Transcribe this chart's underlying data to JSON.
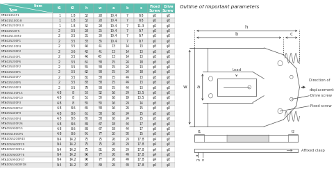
{
  "title_unit": "(unit : mm)",
  "header_bg": "#5dbfb0",
  "header_text": "#ffffff",
  "row_bg_odd": "#ffffff",
  "row_bg_even": "#e8e8e8",
  "col_labels": [
    "t1",
    "t2",
    "h",
    "w",
    "a",
    "b",
    "c",
    "Fixed\nScrew",
    "Drive\nScrew"
  ],
  "rows": [
    [
      "MTA0135CF1",
      1,
      1.8,
      32,
      28,
      10.4,
      7,
      "9.8",
      "φ2",
      "φ2"
    ],
    [
      "MTA0151000.8",
      1,
      1.8,
      32,
      28,
      10.4,
      7,
      "9.8",
      "φ2",
      "φ2"
    ],
    [
      "MTA015200F0.3",
      1,
      1.8,
      32,
      28,
      10.4,
      7,
      "11.3",
      "φ2",
      "φ2"
    ],
    [
      "MTA0255OF5",
      2,
      3.5,
      28,
      25,
      10.4,
      7,
      "9.7",
      "φ2",
      "φ2"
    ],
    [
      "MTA0251O0F2",
      2,
      3.5,
      31,
      30,
      10.4,
      7,
      "9.7",
      "φ2",
      "φ2"
    ],
    [
      "MTA025200F1",
      2,
      3.5,
      33,
      35,
      10.4,
      7,
      "9.7",
      "φ2",
      "φ2"
    ],
    [
      "MTA025100F4",
      2,
      3.5,
      46,
      41,
      13,
      14,
      "13",
      "φ3",
      "φ2"
    ],
    [
      "MTA025200F2",
      2,
      3.6,
      42,
      41,
      13,
      14,
      "13",
      "φ3",
      "φ2"
    ],
    [
      "MTA025400F1",
      2,
      3.5,
      46,
      48,
      13,
      14,
      "13",
      "φ3",
      "φ2"
    ],
    [
      "MTA025200F6",
      2,
      3.5,
      61,
      58,
      15,
      24,
      "18",
      "φ3",
      "φ2"
    ],
    [
      "MTA025400F2",
      2,
      3.5,
      55,
      58,
      15,
      24,
      "13",
      "φ3",
      "φ2"
    ],
    [
      "MTA025600F1",
      2,
      3.5,
      62,
      58,
      15,
      24,
      "18",
      "φ3",
      "φ2"
    ],
    [
      "MTA025400F7",
      2,
      3.5,
      81,
      58,
      15,
      44,
      "13",
      "φ3",
      "φ2"
    ],
    [
      "MTA025500F5",
      2,
      3.5,
      83,
      58,
      15,
      44,
      "13",
      "φ3",
      "φ2"
    ],
    [
      "MTA025500F3",
      2,
      3.5,
      79,
      58,
      15,
      44,
      "13",
      "φ3",
      "φ2"
    ],
    [
      "MTA055100F15",
      4.8,
      8,
      53,
      52,
      16,
      29,
      "13.5",
      "φ3",
      "φ2"
    ],
    [
      "MTA055200F10",
      4.8,
      8,
      51,
      50,
      16,
      19,
      "13.5",
      "φ3",
      "φ2"
    ],
    [
      "MTA055400F3",
      4.8,
      8,
      55,
      50,
      16,
      29,
      "14",
      "φ3",
      "φ2"
    ],
    [
      "MTA055200F12",
      4.8,
      8.6,
      65,
      58,
      16,
      26,
      "15",
      "φ3",
      "φ2"
    ],
    [
      "MTA055400F9",
      4.8,
      8.6,
      61,
      58,
      16,
      24,
      "15",
      "φ3",
      "φ2"
    ],
    [
      "MTA055600F4",
      4.8,
      8.6,
      65,
      58,
      16,
      24,
      "15",
      "φ3",
      "φ2"
    ],
    [
      "MTA055400F26",
      4.8,
      8.6,
      86,
      67,
      18,
      44,
      "17",
      "φ3",
      "φ2"
    ],
    [
      "MTA055900F15",
      4.8,
      8.6,
      86,
      67,
      18,
      44,
      "17",
      "φ3",
      "φ2"
    ],
    [
      "MTA055160OF5",
      4.8,
      8.6,
      91,
      77,
      20,
      50,
      "15",
      "φ3",
      "φ2"
    ],
    [
      "MTA10552O0F43",
      9.4,
      14.2,
      75,
      75,
      26,
      29,
      "17.8",
      "φ4",
      "φ2"
    ],
    [
      "MTA1059400F29",
      9.4,
      14.2,
      75,
      75,
      26,
      29,
      "17.8",
      "φ4",
      "φ2"
    ],
    [
      "MTA1059700F14",
      9.4,
      14.2,
      75,
      81,
      26,
      29,
      "17.8",
      "φ4",
      "φ2"
    ],
    [
      "MTA1059400F76",
      9.4,
      14.2,
      96,
      77,
      26,
      49,
      "17.8",
      "φ4",
      "φ2"
    ],
    [
      "MTA1059900F37",
      9.4,
      14.2,
      96,
      77,
      26,
      49,
      "17.8",
      "φ4",
      "φ2"
    ],
    [
      "MTA10551600F18",
      9.4,
      14.2,
      97,
      89,
      26,
      49,
      "17.8",
      "φ4",
      "φ2"
    ]
  ],
  "diagram_title": "Outline of important parameters",
  "bg_color": "#ffffff"
}
